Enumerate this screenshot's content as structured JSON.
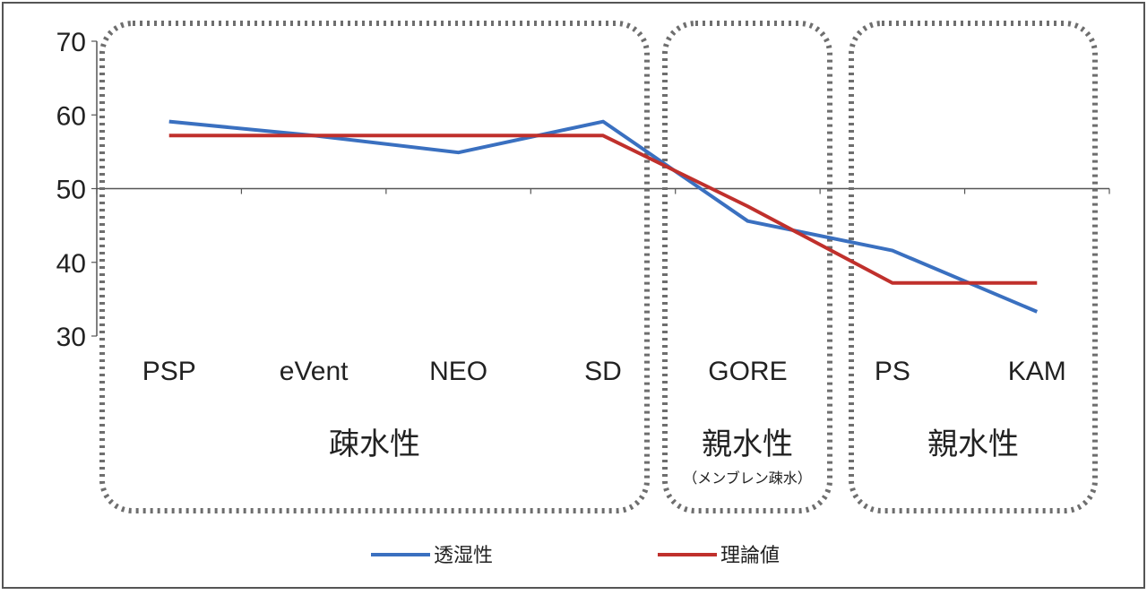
{
  "chart_data": {
    "type": "line",
    "categories": [
      "PSP",
      "eVent",
      "NEO",
      "SD",
      "GORE",
      "PS",
      "KAM"
    ],
    "ylim": [
      30,
      70
    ],
    "yticks": [
      "70",
      "60",
      "50",
      "40",
      "30"
    ],
    "series": [
      {
        "name": "透湿性",
        "color": "#3a70c0",
        "values": [
          59.1,
          57.2,
          54.9,
          59.1,
          45.6,
          41.6,
          33.3
        ]
      },
      {
        "name": "理論値",
        "color": "#c0302c",
        "values": [
          57.2,
          57.2,
          57.2,
          57.2,
          47.6,
          37.2,
          37.2
        ]
      }
    ],
    "groups": [
      {
        "label": "疎水性",
        "sublabel": "",
        "categories": [
          "PSP",
          "eVent",
          "NEO",
          "SD"
        ]
      },
      {
        "label": "親水性",
        "sublabel": "（メンブレン疎水）",
        "categories": [
          "GORE"
        ]
      },
      {
        "label": "親水性",
        "sublabel": "",
        "categories": [
          "PS",
          "KAM"
        ]
      }
    ],
    "legend_position": "bottom",
    "grid": false
  }
}
